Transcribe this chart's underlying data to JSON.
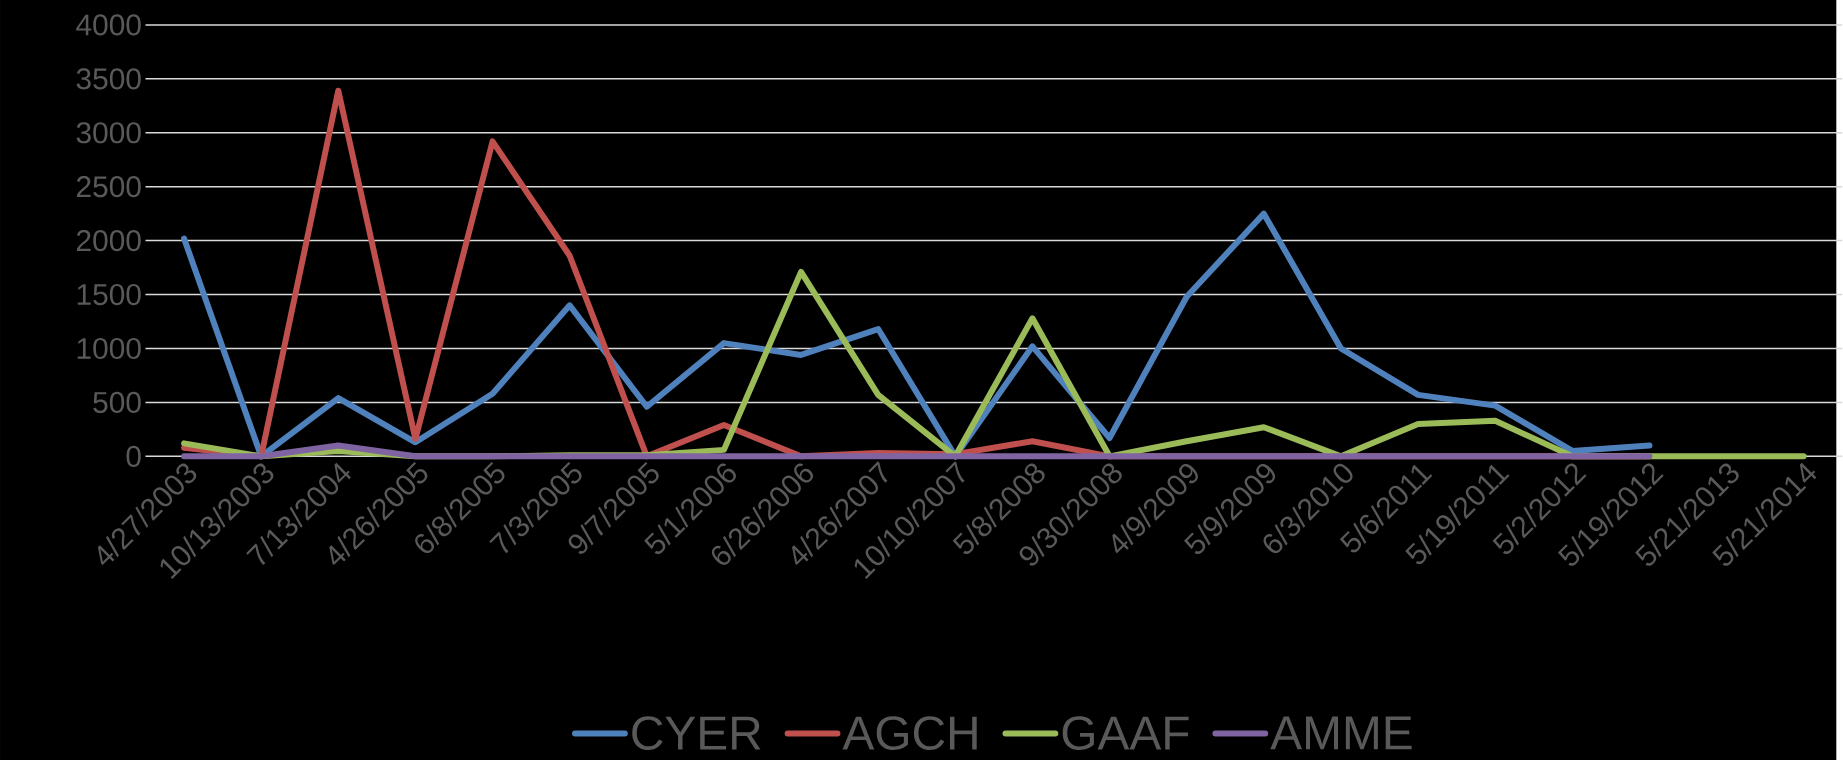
{
  "chart_data": {
    "type": "line",
    "categories": [
      "4/27/2003",
      "10/13/2003",
      "7/13/2004",
      "4/26/2005",
      "6/8/2005",
      "7/3/2005",
      "9/7/2005",
      "5/1/2006",
      "6/26/2006",
      "4/26/2007",
      "10/10/2007",
      "5/8/2008",
      "9/30/2008",
      "4/9/2009",
      "5/9/2009",
      "6/3/2010",
      "5/6/2011",
      "5/19/2011",
      "5/2/2012",
      "5/19/2012",
      "5/21/2013",
      "5/21/2014"
    ],
    "series": [
      {
        "name": "CYER",
        "color": "#4f81bd",
        "values": [
          2020,
          0,
          540,
          130,
          580,
          1400,
          460,
          1050,
          940,
          1180,
          0,
          1020,
          170,
          1480,
          2250,
          1000,
          570,
          470,
          50,
          100,
          null,
          null
        ]
      },
      {
        "name": "AGCH",
        "color": "#c0504d",
        "values": [
          80,
          0,
          3390,
          160,
          2920,
          1860,
          0,
          290,
          0,
          30,
          20,
          140,
          0,
          0,
          0,
          0,
          0,
          0,
          0,
          0,
          null,
          null
        ]
      },
      {
        "name": "GAAF",
        "color": "#9bbb59",
        "values": [
          120,
          0,
          50,
          0,
          0,
          10,
          10,
          60,
          1710,
          570,
          0,
          1280,
          0,
          140,
          270,
          0,
          300,
          330,
          0,
          0,
          0,
          0
        ]
      },
      {
        "name": "AMME",
        "color": "#8064a2",
        "values": [
          0,
          0,
          100,
          0,
          0,
          0,
          0,
          0,
          0,
          0,
          0,
          0,
          0,
          0,
          0,
          0,
          0,
          0,
          0,
          0,
          null,
          null
        ]
      }
    ],
    "ylim": [
      0,
      4000
    ],
    "yticks": [
      0,
      500,
      1000,
      1500,
      2000,
      2500,
      3000,
      3500,
      4000
    ],
    "grid": "y",
    "legend": "bottom"
  }
}
